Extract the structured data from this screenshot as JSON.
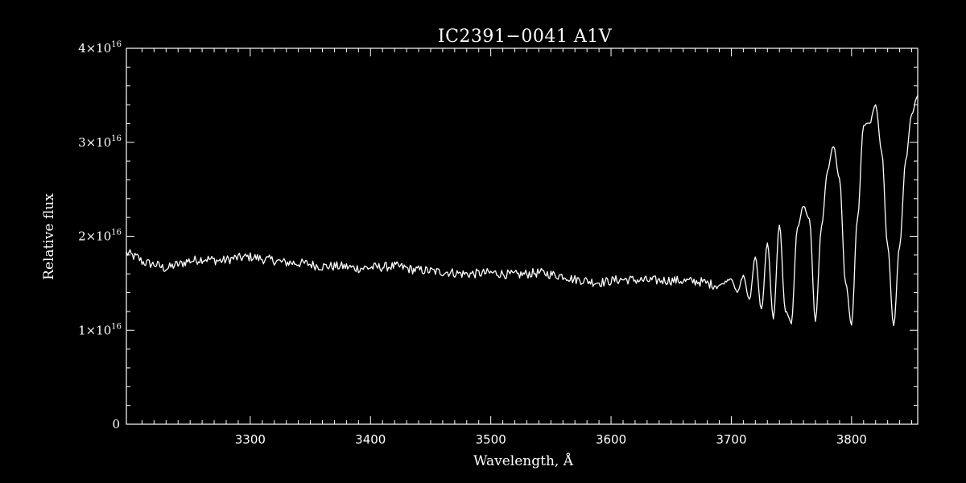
{
  "chart_data": {
    "type": "line",
    "title": "IC2391−0041   A1V",
    "xlabel": "Wavelength, Å",
    "ylabel": "Relative flux",
    "xlim": [
      3197,
      3855
    ],
    "ylim": [
      0,
      4e+16
    ],
    "grid": false,
    "xticks": [
      {
        "value": 3300,
        "label": "3300"
      },
      {
        "value": 3400,
        "label": "3400"
      },
      {
        "value": 3500,
        "label": "3500"
      },
      {
        "value": 3600,
        "label": "3600"
      },
      {
        "value": 3700,
        "label": "3700"
      },
      {
        "value": 3800,
        "label": "3800"
      }
    ],
    "yticks": [
      {
        "value": 0,
        "label": "0",
        "base": "",
        "exp": ""
      },
      {
        "value": 1e+16,
        "label": "",
        "base": "1×10",
        "exp": "16"
      },
      {
        "value": 2e+16,
        "label": "",
        "base": "2×10",
        "exp": "16"
      },
      {
        "value": 3e+16,
        "label": "",
        "base": "3×10",
        "exp": "16"
      },
      {
        "value": 4e+16,
        "label": "",
        "base": "4×10",
        "exp": "16"
      }
    ],
    "series": [
      {
        "color": "#ffffff",
        "x": [
          3197,
          3205,
          3212,
          3220,
          3230,
          3240,
          3250,
          3262,
          3275,
          3290,
          3300,
          3315,
          3330,
          3345,
          3360,
          3375,
          3390,
          3405,
          3420,
          3440,
          3460,
          3480,
          3500,
          3520,
          3540,
          3560,
          3570,
          3590,
          3610,
          3630,
          3650,
          3670,
          3690,
          3700,
          3705,
          3710,
          3715,
          3720,
          3725,
          3730,
          3735,
          3740,
          3745,
          3750,
          3755,
          3760,
          3765,
          3770,
          3775,
          3780,
          3785,
          3790,
          3795,
          3800,
          3805,
          3810,
          3815,
          3820,
          3825,
          3830,
          3835,
          3840,
          3845,
          3850,
          3855
        ],
        "y": [
          1.82e+16,
          1.78e+16,
          1.72e+16,
          1.7e+16,
          1.66e+16,
          1.7e+16,
          1.74e+16,
          1.76e+16,
          1.74e+16,
          1.77e+16,
          1.78e+16,
          1.75e+16,
          1.72e+16,
          1.71e+16,
          1.68e+16,
          1.68e+16,
          1.66e+16,
          1.67e+16,
          1.68e+16,
          1.64e+16,
          1.62e+16,
          1.6e+16,
          1.61e+16,
          1.59e+16,
          1.61e+16,
          1.58e+16,
          1.54e+16,
          1.51e+16,
          1.54e+16,
          1.53e+16,
          1.53e+16,
          1.52e+16,
          1.48e+16,
          1.55e+16,
          1.4e+16,
          1.58e+16,
          1.32e+16,
          1.78e+16,
          1.22e+16,
          1.92e+16,
          1.13e+16,
          2.12e+16,
          1.2e+16,
          1.08e+16,
          2.1e+16,
          2.32e+16,
          2.18e+16,
          1.1e+16,
          2.1e+16,
          2.7e+16,
          2.96e+16,
          2.6e+16,
          1.5e+16,
          1.06e+16,
          2.2e+16,
          3.18e+16,
          3.2e+16,
          3.4e+16,
          2.9e+16,
          1.9e+16,
          1.05e+16,
          1.9e+16,
          2.8e+16,
          3.3e+16,
          3.5e+16
        ]
      }
    ]
  }
}
